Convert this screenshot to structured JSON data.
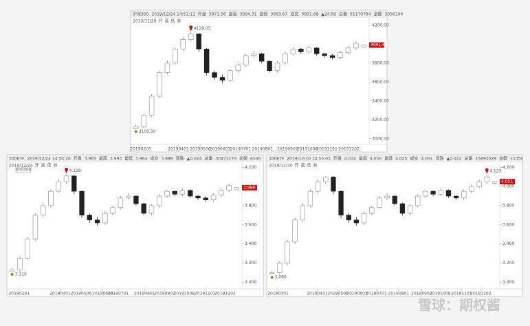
{
  "watermark": "雪球：期权酱",
  "chart_data": [
    {
      "type": "candlestick",
      "header": [
        "沪深300",
        "2019/12/24 14:51:11",
        "开盘",
        "3971.56",
        "最高",
        "3994.31",
        "最低",
        "3963.67",
        "成交",
        "3991.68",
        "▲24.58",
        "总量",
        "61170794",
        "金额",
        "3058100"
      ],
      "subheader": [
        "2019/11/28",
        "开",
        "高",
        "低",
        "收"
      ],
      "open": [
        3110,
        3130,
        3250,
        3450,
        3700,
        3800,
        3950,
        4050,
        4110,
        3950,
        3700,
        3650,
        3620,
        3720,
        3780,
        3880,
        3900,
        3820,
        3720,
        3800,
        3900,
        3950,
        3920,
        3960,
        3900,
        3880,
        3860,
        3910,
        3960,
        3971.56
      ],
      "high": [
        3150,
        3270,
        3470,
        3720,
        3830,
        3970,
        4080,
        4129.05,
        4120,
        3960,
        3720,
        3680,
        3740,
        3800,
        3900,
        3930,
        3910,
        3830,
        3820,
        3920,
        3970,
        3960,
        3980,
        3970,
        3910,
        3900,
        3930,
        3980,
        4030,
        3994.31
      ],
      "low": [
        3105.5,
        3110,
        3230,
        3430,
        3680,
        3780,
        3930,
        4030,
        3920,
        3670,
        3620,
        3590,
        3600,
        3700,
        3760,
        3860,
        3800,
        3700,
        3700,
        3780,
        3880,
        3900,
        3900,
        3880,
        3860,
        3840,
        3840,
        3890,
        3940,
        3963.67
      ],
      "close": [
        3130,
        3250,
        3450,
        3700,
        3800,
        3950,
        4050,
        4110,
        3950,
        3700,
        3650,
        3620,
        3720,
        3780,
        3880,
        3900,
        3820,
        3720,
        3800,
        3900,
        3950,
        3920,
        3960,
        3900,
        3880,
        3860,
        3910,
        3960,
        4010,
        3991.68
      ],
      "up_color": "#888888",
      "down_color": "#222222",
      "tag_color": "#cc1111",
      "max_label": "4129.05",
      "min_label": "3105.50",
      "last_tag": "3991.68",
      "ylim": [
        2940,
        4250
      ],
      "yticks": [
        {
          "value": 3000,
          "label": "3000.00"
        },
        {
          "value": 3200,
          "label": "3200.00"
        },
        {
          "value": 3400,
          "label": "3400.00"
        },
        {
          "value": 3600,
          "label": "3600.00"
        },
        {
          "value": 3800,
          "label": "3800.00"
        },
        {
          "value": 4200,
          "label": "4200.00"
        }
      ],
      "xlim": [
        -0.5,
        29.5
      ],
      "xticks": [
        {
          "value": 0.6,
          "label": "20190205"
        },
        {
          "value": 5.4,
          "label": "20190401"
        },
        {
          "value": 8.2,
          "label": "20190506"
        },
        {
          "value": 10.7,
          "label": "20190603"
        },
        {
          "value": 13.3,
          "label": "20190701"
        },
        {
          "value": 16.1,
          "label": "20190801"
        },
        {
          "value": 19.3,
          "label": "20190902"
        },
        {
          "value": 21.8,
          "label": "20191008"
        },
        {
          "value": 24.3,
          "label": "20191101"
        },
        {
          "value": 27.1,
          "label": "20191202"
        }
      ]
    },
    {
      "type": "candlestick",
      "header": [
        "300ETF",
        "2019/12/24 14:54:26",
        "开盘",
        "3.965",
        "最高",
        "3.993",
        "最低",
        "3.964",
        "成交",
        "3.988",
        "涨跌",
        "▲0.024",
        "总量",
        "30471270",
        "金额",
        "6500"
      ],
      "subheader": [
        "2019/12/24",
        "开",
        "高",
        "低",
        "收"
      ],
      "tooltip": "000300",
      "open": [
        3.11,
        3.13,
        3.25,
        3.45,
        3.7,
        3.8,
        3.95,
        4.05,
        4.11,
        3.95,
        3.7,
        3.65,
        3.62,
        3.72,
        3.78,
        3.88,
        3.9,
        3.82,
        3.72,
        3.8,
        3.9,
        3.95,
        3.92,
        3.96,
        3.9,
        3.88,
        3.86,
        3.91,
        3.96,
        3.965
      ],
      "high": [
        3.15,
        3.27,
        3.47,
        3.72,
        3.83,
        3.97,
        4.08,
        4.128,
        4.12,
        3.96,
        3.72,
        3.68,
        3.74,
        3.8,
        3.9,
        3.93,
        3.91,
        3.83,
        3.82,
        3.92,
        3.97,
        3.96,
        3.98,
        3.97,
        3.91,
        3.9,
        3.93,
        3.98,
        4.03,
        3.993
      ],
      "low": [
        3.11,
        3.11,
        3.23,
        3.43,
        3.68,
        3.78,
        3.93,
        4.03,
        3.92,
        3.67,
        3.62,
        3.59,
        3.6,
        3.7,
        3.76,
        3.86,
        3.8,
        3.7,
        3.7,
        3.78,
        3.88,
        3.9,
        3.9,
        3.88,
        3.86,
        3.84,
        3.84,
        3.89,
        3.94,
        3.964
      ],
      "close": [
        3.13,
        3.25,
        3.45,
        3.7,
        3.8,
        3.95,
        4.05,
        4.11,
        3.95,
        3.7,
        3.65,
        3.62,
        3.72,
        3.78,
        3.88,
        3.9,
        3.82,
        3.72,
        3.8,
        3.9,
        3.95,
        3.92,
        3.96,
        3.9,
        3.88,
        3.86,
        3.91,
        3.96,
        4.01,
        3.988
      ],
      "up_color": "#888888",
      "down_color": "#222222",
      "tag_color": "#cc1111",
      "max_label": "4.128",
      "min_label": "3.110",
      "last_tag": "3.988",
      "ylim": [
        2.93,
        4.26
      ],
      "yticks": [
        {
          "value": 3,
          "label": "3.000"
        },
        {
          "value": 3.2,
          "label": "3.200"
        },
        {
          "value": 3.4,
          "label": "3.400"
        },
        {
          "value": 3.6,
          "label": "3.600"
        },
        {
          "value": 3.8,
          "label": "3.800"
        },
        {
          "value": 4.2,
          "label": "4.200"
        }
      ],
      "xlim": [
        -0.5,
        29.5
      ],
      "xticks": [
        {
          "value": 0.9,
          "label": "20190201"
        },
        {
          "value": 6.2,
          "label": "20190401"
        },
        {
          "value": 8.9,
          "label": "20190506"
        },
        {
          "value": 11.7,
          "label": "20190603"
        },
        {
          "value": 13.7,
          "label": "20190701"
        },
        {
          "value": 17.1,
          "label": "20190801"
        },
        {
          "value": 19.7,
          "label": "20190902"
        },
        {
          "value": 22.2,
          "label": "20191008"
        },
        {
          "value": 24.9,
          "label": "20191101"
        },
        {
          "value": 27.5,
          "label": "20191202"
        }
      ]
    },
    {
      "type": "candlestick",
      "header": [
        "300ETF",
        "2019/12/10 14:55:03",
        "开盘",
        "4.034",
        "最高",
        "4.056",
        "最低",
        "4.025",
        "成交",
        "4.051",
        "涨跌",
        "▲0.022",
        "总量",
        "15693029",
        "金额",
        "15350"
      ],
      "subheader": [
        "2019/12/10",
        "开",
        "高",
        "低",
        "收"
      ],
      "open": [
        3.09,
        3.1,
        3.2,
        3.42,
        3.65,
        3.8,
        3.95,
        4.05,
        4.1,
        3.95,
        3.7,
        3.65,
        3.62,
        3.72,
        3.78,
        3.88,
        3.9,
        3.82,
        3.72,
        3.8,
        3.9,
        3.95,
        3.92,
        3.96,
        3.9,
        3.88,
        3.95,
        4.0,
        4.05,
        4.034
      ],
      "high": [
        3.12,
        3.22,
        3.44,
        3.67,
        3.83,
        3.97,
        4.08,
        4.11,
        4.11,
        3.96,
        3.72,
        3.68,
        3.74,
        3.8,
        3.9,
        3.93,
        3.91,
        3.83,
        3.82,
        3.92,
        3.97,
        3.96,
        3.98,
        3.97,
        3.91,
        3.97,
        4.02,
        4.07,
        4.123,
        4.056
      ],
      "low": [
        3.08,
        3.08,
        3.18,
        3.4,
        3.63,
        3.78,
        3.93,
        4.03,
        3.92,
        3.67,
        3.62,
        3.59,
        3.6,
        3.7,
        3.76,
        3.86,
        3.8,
        3.7,
        3.7,
        3.78,
        3.88,
        3.9,
        3.9,
        3.88,
        3.86,
        3.86,
        3.93,
        3.98,
        4.03,
        4.025
      ],
      "close": [
        3.1,
        3.2,
        3.42,
        3.65,
        3.8,
        3.95,
        4.05,
        4.1,
        3.95,
        3.7,
        3.65,
        3.62,
        3.72,
        3.78,
        3.88,
        3.9,
        3.82,
        3.72,
        3.8,
        3.9,
        3.95,
        3.92,
        3.96,
        3.9,
        3.88,
        3.95,
        4.0,
        4.05,
        4.1,
        4.051
      ],
      "up_color": "#888888",
      "down_color": "#222222",
      "tag_color": "#cc1111",
      "max_label": "4.123",
      "min_label": "3.080",
      "last_tag": "4.051",
      "ylim": [
        2.93,
        4.26
      ],
      "yticks": [
        {
          "value": 3,
          "label": "3.000"
        },
        {
          "value": 3.2,
          "label": "3.200"
        },
        {
          "value": 3.4,
          "label": "3.400"
        },
        {
          "value": 3.6,
          "label": "3.600"
        },
        {
          "value": 3.8,
          "label": "3.800"
        },
        {
          "value": 4,
          "label": "4.000"
        },
        {
          "value": 4.2,
          "label": "4.200"
        }
      ],
      "xlim": [
        -0.5,
        29.5
      ],
      "xticks": [
        {
          "value": 0.8,
          "label": "20190301"
        },
        {
          "value": 5.9,
          "label": "20190401"
        },
        {
          "value": 8.6,
          "label": "20190506"
        },
        {
          "value": 11.1,
          "label": "20190603"
        },
        {
          "value": 13.6,
          "label": "20190701"
        },
        {
          "value": 16.5,
          "label": "20190801"
        },
        {
          "value": 19.5,
          "label": "20190902"
        },
        {
          "value": 21.9,
          "label": "20191008"
        },
        {
          "value": 24.7,
          "label": "20191101"
        },
        {
          "value": 27.2,
          "label": "20191202"
        }
      ]
    }
  ]
}
